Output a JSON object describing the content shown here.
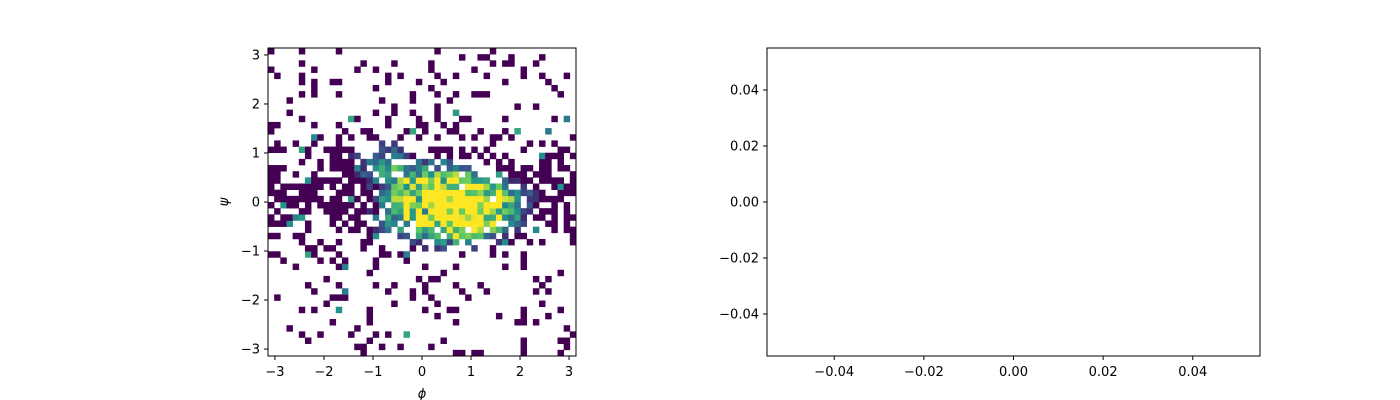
{
  "chart_data": [
    {
      "type": "heatmap",
      "title": "",
      "xlabel": "ϕ",
      "ylabel": "ψ",
      "xlim": [
        -3.1416,
        3.1416
      ],
      "ylim": [
        -3.1416,
        3.1416
      ],
      "xticks": [
        -3,
        -2,
        -1,
        0,
        1,
        2,
        3
      ],
      "xtick_labels": [
        "−3",
        "−2",
        "−1",
        "0",
        "1",
        "2",
        "3"
      ],
      "yticks": [
        -3,
        -2,
        -1,
        0,
        1,
        2,
        3
      ],
      "ytick_labels": [
        "−3",
        "−2",
        "−1",
        "0",
        "1",
        "2",
        "3"
      ],
      "bins": 50,
      "colormap": "viridis",
      "empty_bins": "white",
      "grid": false,
      "description_of_density": "2D histogram of ramachandran angles; sparse dark-purple bins across the plane with denser teal/green/yellow bins concentrated around ϕ∈[-1,2], ψ∈[-0.7,1]",
      "dense_regions": [
        {
          "phi": 0.0,
          "psi": 0.1,
          "level": 0.9
        },
        {
          "phi": -0.8,
          "psi": 0.8,
          "level": 0.7
        },
        {
          "phi": 0.5,
          "psi": 0.3,
          "level": 1.0
        },
        {
          "phi": 1.0,
          "psi": -0.2,
          "level": 0.85
        },
        {
          "phi": 1.6,
          "psi": 0.0,
          "level": 0.8
        },
        {
          "phi": -0.3,
          "psi": -0.4,
          "level": 0.6
        },
        {
          "phi": 0.8,
          "psi": -0.6,
          "level": 0.6
        }
      ]
    },
    {
      "type": "scatter",
      "title": "",
      "xlabel": "",
      "ylabel": "",
      "xlim": [
        -0.055,
        0.055
      ],
      "ylim": [
        -0.055,
        0.055
      ],
      "xticks": [
        -0.04,
        -0.02,
        0.0,
        0.02,
        0.04
      ],
      "xtick_labels": [
        "−0.04",
        "−0.02",
        "0.00",
        "0.02",
        "0.04"
      ],
      "yticks": [
        -0.04,
        -0.02,
        0.0,
        0.02,
        0.04
      ],
      "ytick_labels": [
        "−0.04",
        "−0.02",
        "0.00",
        "0.02",
        "0.04"
      ],
      "points": [],
      "grid": false
    }
  ]
}
